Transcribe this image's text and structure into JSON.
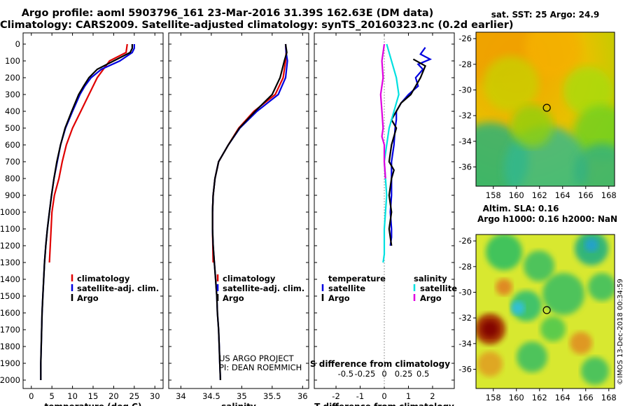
{
  "titles": {
    "line1": "Argo profile: aoml 5903796_161 23-Mar-2016 31.39S 162.63E (DM data)",
    "line2": "Climatology: CARS2009. Satellite-adjusted climatology: synTS_20160323.nc (0.2d earlier)"
  },
  "vertical_stamp": "©IMOS 13-Dec-2018 00:34:59",
  "colors": {
    "climatology": "#e00000",
    "satellite": "#0000e0",
    "argo": "#000000",
    "sat_salinity": "#00e0e0",
    "argo_salinity": "#e000e0"
  },
  "chart_data": [
    {
      "type": "line",
      "name": "temperature-profile",
      "xlabel": "temperature (deg C)",
      "ylabel": "",
      "xlim": [
        -2,
        32
      ],
      "ylim": [
        2050,
        0
      ],
      "xticks": [
        "0",
        "5",
        "10",
        "15",
        "20",
        "25",
        "30"
      ],
      "xtick_values": [
        0,
        5,
        10,
        15,
        20,
        25,
        30
      ],
      "yticks": [
        "0",
        "100",
        "200",
        "300",
        "400",
        "500",
        "600",
        "700",
        "800",
        "900",
        "1000",
        "1100",
        "1200",
        "1300",
        "1400",
        "1500",
        "1600",
        "1700",
        "1800",
        "1900",
        "2000"
      ],
      "legend": {
        "climatology": "climatology",
        "satellite": "satellite-adj. clim.",
        "argo": "Argo"
      },
      "series": [
        {
          "name": "climatology",
          "x": [
            23.3,
            23,
            19,
            16,
            14,
            12,
            10,
            8.5,
            7.5,
            6.7,
            5.6,
            5,
            4.4
          ],
          "y": [
            0,
            50,
            100,
            200,
            300,
            400,
            500,
            600,
            700,
            800,
            900,
            1000,
            1300
          ]
        },
        {
          "name": "satellite",
          "x": [
            25,
            25,
            24.5,
            21.5,
            17,
            14.5,
            13,
            11.8,
            10,
            8.3,
            7.1,
            6.3,
            5.5,
            4.9,
            4.4,
            3.9,
            3.5,
            3.2,
            3.0,
            2.8,
            2.6,
            2.5,
            2.4,
            2.3,
            2.3
          ],
          "y": [
            0,
            25,
            50,
            100,
            150,
            200,
            250,
            300,
            400,
            500,
            600,
            700,
            800,
            900,
            1000,
            1100,
            1200,
            1300,
            1400,
            1500,
            1600,
            1700,
            1800,
            1900,
            2000
          ]
        },
        {
          "name": "argo",
          "x": [
            24.5,
            24.5,
            24,
            20,
            16,
            14,
            12.7,
            11.5,
            9.8,
            8.2,
            7.1,
            6.2,
            5.5,
            4.9,
            4.4,
            3.9,
            3.5,
            3.2,
            3.0,
            2.8,
            2.6,
            2.5,
            2.4,
            2.3,
            2.3
          ],
          "y": [
            0,
            25,
            50,
            100,
            150,
            200,
            250,
            300,
            400,
            500,
            600,
            700,
            800,
            900,
            1000,
            1100,
            1200,
            1300,
            1400,
            1500,
            1600,
            1700,
            1800,
            1900,
            2000
          ]
        }
      ]
    },
    {
      "type": "line",
      "name": "salinity-profile",
      "xlabel": "salinity",
      "ylabel": "",
      "xlim": [
        33.8,
        36.1
      ],
      "ylim": [
        2050,
        0
      ],
      "xticks": [
        "34",
        "34.5",
        "35",
        "35.5",
        "36"
      ],
      "xtick_values": [
        34,
        34.5,
        35,
        35.5,
        36
      ],
      "legend": {
        "climatology": "climatology",
        "satellite": "satellite-adj. clim.",
        "argo": "Argo"
      },
      "annotation": [
        "US ARGO PROJECT",
        "PI: DEAN ROEMMICH"
      ],
      "series": [
        {
          "name": "climatology",
          "x": [
            35.72,
            35.73,
            35.72,
            35.68,
            35.55,
            35.2,
            34.95,
            34.78,
            34.62,
            34.56,
            34.53,
            34.52,
            34.52,
            34.53
          ],
          "y": [
            0,
            50,
            100,
            200,
            300,
            400,
            500,
            600,
            700,
            800,
            900,
            1000,
            1100,
            1300
          ]
        },
        {
          "name": "satellite",
          "x": [
            35.72,
            35.73,
            35.75,
            35.72,
            35.6,
            35.25,
            34.97,
            34.78,
            34.62,
            34.56,
            34.53,
            34.52,
            34.52,
            34.53,
            34.55,
            34.57,
            34.59,
            34.6,
            34.62,
            34.63,
            34.64,
            34.65
          ],
          "y": [
            0,
            50,
            100,
            200,
            300,
            400,
            500,
            600,
            700,
            800,
            900,
            1000,
            1100,
            1200,
            1300,
            1400,
            1500,
            1600,
            1700,
            1800,
            1900,
            2000
          ]
        },
        {
          "name": "argo",
          "x": [
            35.72,
            35.74,
            35.7,
            35.63,
            35.5,
            35.22,
            34.96,
            34.78,
            34.62,
            34.56,
            34.53,
            34.52,
            34.52,
            34.53,
            34.55,
            34.57,
            34.59,
            34.6,
            34.62,
            34.63,
            34.64,
            34.65
          ],
          "y": [
            0,
            50,
            100,
            200,
            300,
            400,
            500,
            600,
            700,
            800,
            900,
            1000,
            1100,
            1200,
            1300,
            1400,
            1500,
            1600,
            1700,
            1800,
            1900,
            2000
          ]
        }
      ]
    },
    {
      "type": "line",
      "name": "difference-profile",
      "xlabel": "T difference from climatology",
      "x2label": "S difference from climatology",
      "xlim": [
        -2.9,
        2.9
      ],
      "ylim": [
        2050,
        0
      ],
      "xticks": [
        "-2",
        "-1",
        "0",
        "1",
        "2"
      ],
      "xtick_values": [
        -2,
        -1,
        0,
        1,
        2
      ],
      "x2ticks": [
        "-0.5",
        "-0.25",
        "0",
        "0.25",
        "0.5"
      ],
      "x2tick_values": [
        -1.6,
        -0.8,
        0,
        0.8,
        1.6
      ],
      "legend": {
        "temperature": "temperature",
        "salinity": "salinity",
        "satellite": "satellite",
        "argo": "Argo"
      },
      "series": [
        {
          "name": "T satellite",
          "x": [
            1.7,
            1.5,
            1.9,
            1.4,
            1.6,
            1.3,
            1.4,
            1.0,
            0.7,
            0.5,
            0.5,
            0.45,
            0.4,
            0.3,
            0.3,
            0.3,
            0.25,
            0.3,
            0.3,
            0.25
          ],
          "y": [
            20,
            60,
            90,
            120,
            150,
            200,
            250,
            300,
            350,
            400,
            450,
            500,
            600,
            700,
            800,
            900,
            1000,
            1100,
            1150,
            1200
          ]
        },
        {
          "name": "T argo",
          "x": [
            1.2,
            1.7,
            1.5,
            1.1,
            0.7,
            0.5,
            0.3,
            0.5,
            0.3,
            0.2,
            0.4,
            0.3,
            0.2,
            0.3,
            0.2,
            0.3
          ],
          "y": [
            90,
            130,
            200,
            300,
            350,
            400,
            450,
            500,
            600,
            700,
            750,
            800,
            900,
            1000,
            1100,
            1200
          ]
        },
        {
          "name": "S satellite",
          "x": [
            0.1,
            0.3,
            0.5,
            0.6,
            0.4,
            0.2,
            0.1,
            0.0,
            0.05,
            0.1,
            0.05,
            0.0,
            0.0,
            0.0,
            -0.05
          ],
          "y": [
            0,
            100,
            200,
            300,
            400,
            500,
            600,
            700,
            800,
            900,
            1000,
            1100,
            1200,
            1250,
            1300
          ]
        },
        {
          "name": "S argo",
          "x": [
            0.0,
            -0.1,
            -0.05,
            -0.15,
            -0.1,
            -0.05,
            -0.1,
            0.0,
            0.0,
            0.05
          ],
          "y": [
            0,
            100,
            200,
            300,
            400,
            500,
            550,
            600,
            700,
            800
          ]
        }
      ]
    },
    {
      "type": "heatmap",
      "name": "sst-map",
      "title": "sat. SST: 25 Argo: 24.9",
      "xlim": [
        156.5,
        168.5
      ],
      "ylim": [
        -37.5,
        -25.5
      ],
      "xticks": [
        "158",
        "160",
        "162",
        "164",
        "166",
        "168"
      ],
      "xtick_values": [
        158,
        160,
        162,
        164,
        166,
        168
      ],
      "yticks": [
        "-26",
        "-28",
        "-30",
        "-32",
        "-34",
        "-36"
      ],
      "ytick_values": [
        -26,
        -28,
        -30,
        -32,
        -34,
        -36
      ],
      "marker": {
        "lon": 162.63,
        "lat": -31.39
      }
    },
    {
      "type": "heatmap",
      "name": "sla-map",
      "title": "Altim. SLA: 0.16",
      "subtitle": "Argo h1000: 0.16 h2000: NaN",
      "xlim": [
        156.5,
        168.5
      ],
      "ylim": [
        -37.5,
        -25.5
      ],
      "xticks": [
        "158",
        "160",
        "162",
        "164",
        "166",
        "168"
      ],
      "xtick_values": [
        158,
        160,
        162,
        164,
        166,
        168
      ],
      "yticks": [
        "-26",
        "-28",
        "-30",
        "-32",
        "-34",
        "-36"
      ],
      "ytick_values": [
        -26,
        -28,
        -30,
        -32,
        -34,
        -36
      ],
      "marker": {
        "lon": 162.63,
        "lat": -31.39
      }
    }
  ]
}
